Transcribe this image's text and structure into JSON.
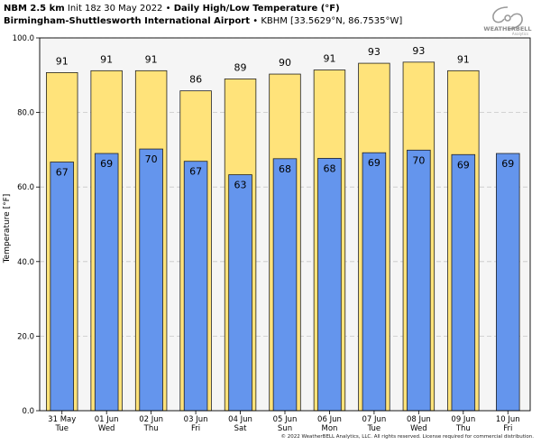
{
  "header": {
    "model": "NBM 2.5 km",
    "init": "Init 18z 30 May 2022",
    "separator": "•",
    "product": "Daily High/Low Temperature (°F)",
    "station": "Birmingham-Shuttlesworth International Airport",
    "station_id": "KBHM [33.5629°N, 86.7535°W]"
  },
  "logo": {
    "text": "WEATHERBELL",
    "sub": "Analytics"
  },
  "copyright": "© 2022 WeatherBELL Analytics, LLC. All rights reserved. License required for commercial distribution.",
  "colors": {
    "high": "#ffe37a",
    "low": "#6495ed",
    "plot_bg": "#f5f5f5",
    "grid": "#c8c8c8"
  },
  "chart_data": {
    "type": "bar",
    "title": "Daily High/Low Temperature (°F)",
    "ylabel": "Temperature [°F]",
    "ylim": [
      0,
      100
    ],
    "yticks": [
      "0.0",
      "20.0",
      "40.0",
      "60.0",
      "80.0",
      "100.0"
    ],
    "ytick_values": [
      0,
      20,
      40,
      60,
      80,
      100
    ],
    "grid": true,
    "categories": [
      {
        "date": "31 May",
        "day": "Tue"
      },
      {
        "date": "01 Jun",
        "day": "Wed"
      },
      {
        "date": "02 Jun",
        "day": "Thu"
      },
      {
        "date": "03 Jun",
        "day": "Fri"
      },
      {
        "date": "04 Jun",
        "day": "Sat"
      },
      {
        "date": "05 Jun",
        "day": "Sun"
      },
      {
        "date": "06 Jun",
        "day": "Mon"
      },
      {
        "date": "07 Jun",
        "day": "Tue"
      },
      {
        "date": "08 Jun",
        "day": "Wed"
      },
      {
        "date": "09 Jun",
        "day": "Thu"
      },
      {
        "date": "10 Jun",
        "day": "Fri"
      }
    ],
    "series": [
      {
        "name": "High",
        "values": [
          90.7,
          91.2,
          91.2,
          85.8,
          89.0,
          90.3,
          91.4,
          93.2,
          93.5,
          91.2,
          null
        ],
        "labels": [
          "91",
          "91",
          "91",
          "86",
          "89",
          "90",
          "91",
          "93",
          "93",
          "91",
          ""
        ]
      },
      {
        "name": "Low",
        "values": [
          66.7,
          69.0,
          70.2,
          66.9,
          63.3,
          67.6,
          67.7,
          69.2,
          69.9,
          68.7,
          69.0
        ],
        "labels": [
          "67",
          "69",
          "70",
          "67",
          "63",
          "68",
          "68",
          "69",
          "70",
          "69",
          "69"
        ]
      }
    ]
  }
}
